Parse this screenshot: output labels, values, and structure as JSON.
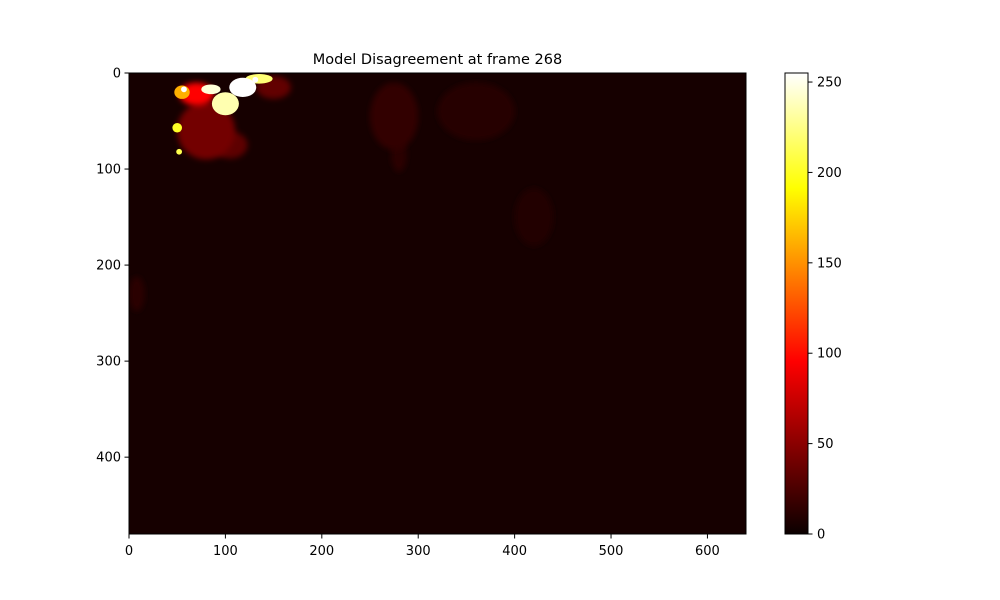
{
  "chart_data": {
    "type": "heatmap",
    "title": "Model Disagreement at frame 268",
    "xlabel": "",
    "ylabel": "",
    "image_width": 640,
    "image_height": 480,
    "xlim": [
      0,
      640
    ],
    "ylim": [
      480,
      0
    ],
    "x_ticks": [
      0,
      100,
      200,
      300,
      400,
      500,
      600
    ],
    "y_ticks": [
      0,
      100,
      200,
      300,
      400
    ],
    "colormap": "hot",
    "colorbar": {
      "min": 0,
      "max": 255,
      "ticks": [
        0,
        50,
        100,
        150,
        200,
        250
      ]
    },
    "background_value": 4,
    "hotspots": [
      {
        "x": 118,
        "y": 15,
        "rx": 14,
        "ry": 10,
        "value": 255
      },
      {
        "x": 100,
        "y": 32,
        "rx": 14,
        "ry": 12,
        "value": 235
      },
      {
        "x": 85,
        "y": 17,
        "rx": 10,
        "ry": 5,
        "value": 245
      },
      {
        "x": 135,
        "y": 6,
        "rx": 14,
        "ry": 5,
        "value": 220
      },
      {
        "x": 70,
        "y": 22,
        "rx": 18,
        "ry": 12,
        "value": 90
      },
      {
        "x": 55,
        "y": 20,
        "rx": 8,
        "ry": 7,
        "value": 160
      },
      {
        "x": 50,
        "y": 57,
        "rx": 5,
        "ry": 5,
        "value": 200
      },
      {
        "x": 52,
        "y": 82,
        "rx": 3,
        "ry": 3,
        "value": 210
      },
      {
        "x": 57,
        "y": 17,
        "rx": 3,
        "ry": 3,
        "value": 255
      },
      {
        "x": 131,
        "y": 7,
        "rx": 3,
        "ry": 3,
        "value": 255
      },
      {
        "x": 80,
        "y": 60,
        "rx": 30,
        "ry": 30,
        "value": 38
      },
      {
        "x": 105,
        "y": 75,
        "rx": 18,
        "ry": 14,
        "value": 30
      },
      {
        "x": 150,
        "y": 15,
        "rx": 18,
        "ry": 12,
        "value": 32
      },
      {
        "x": 275,
        "y": 45,
        "rx": 25,
        "ry": 35,
        "value": 14
      },
      {
        "x": 280,
        "y": 85,
        "rx": 8,
        "ry": 18,
        "value": 12
      },
      {
        "x": 360,
        "y": 40,
        "rx": 40,
        "ry": 30,
        "value": 10
      },
      {
        "x": 420,
        "y": 150,
        "rx": 20,
        "ry": 30,
        "value": 8
      },
      {
        "x": 8,
        "y": 230,
        "rx": 8,
        "ry": 18,
        "value": 12
      }
    ]
  }
}
